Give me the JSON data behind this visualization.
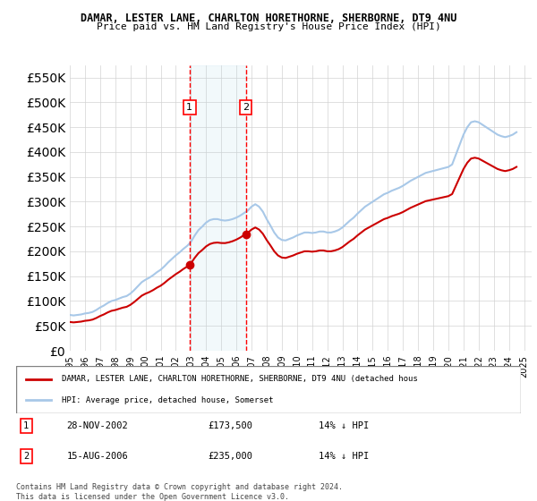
{
  "title1": "DAMAR, LESTER LANE, CHARLTON HORETHORNE, SHERBORNE, DT9 4NU",
  "title2": "Price paid vs. HM Land Registry's House Price Index (HPI)",
  "ylabel_ticks": [
    "£0",
    "£50K",
    "£100K",
    "£150K",
    "£200K",
    "£250K",
    "£300K",
    "£350K",
    "£400K",
    "£450K",
    "£500K",
    "£550K"
  ],
  "ytick_values": [
    0,
    50000,
    100000,
    150000,
    200000,
    250000,
    300000,
    350000,
    400000,
    450000,
    500000,
    550000
  ],
  "ylim": [
    0,
    575000
  ],
  "xlim_start": 1995.0,
  "xlim_end": 2025.5,
  "hpi_color": "#a8c8e8",
  "price_color": "#cc0000",
  "marker1_date": 2002.91,
  "marker1_price": 173500,
  "marker2_date": 2006.62,
  "marker2_price": 235000,
  "marker1_label": "28-NOV-2002",
  "marker1_amount": "£173,500",
  "marker1_pct": "14% ↓ HPI",
  "marker2_label": "15-AUG-2006",
  "marker2_amount": "£235,000",
  "marker2_pct": "14% ↓ HPI",
  "legend_line1": "DAMAR, LESTER LANE, CHARLTON HORETHORNE, SHERBORNE, DT9 4NU (detached hous",
  "legend_line2": "HPI: Average price, detached house, Somerset",
  "footer": "Contains HM Land Registry data © Crown copyright and database right 2024.\nThis data is licensed under the Open Government Licence v3.0.",
  "hpi_years": [
    1995.0,
    1995.25,
    1995.5,
    1995.75,
    1996.0,
    1996.25,
    1996.5,
    1996.75,
    1997.0,
    1997.25,
    1997.5,
    1997.75,
    1998.0,
    1998.25,
    1998.5,
    1998.75,
    1999.0,
    1999.25,
    1999.5,
    1999.75,
    2000.0,
    2000.25,
    2000.5,
    2000.75,
    2001.0,
    2001.25,
    2001.5,
    2001.75,
    2002.0,
    2002.25,
    2002.5,
    2002.75,
    2003.0,
    2003.25,
    2003.5,
    2003.75,
    2004.0,
    2004.25,
    2004.5,
    2004.75,
    2005.0,
    2005.25,
    2005.5,
    2005.75,
    2006.0,
    2006.25,
    2006.5,
    2006.75,
    2007.0,
    2007.25,
    2007.5,
    2007.75,
    2008.0,
    2008.25,
    2008.5,
    2008.75,
    2009.0,
    2009.25,
    2009.5,
    2009.75,
    2010.0,
    2010.25,
    2010.5,
    2010.75,
    2011.0,
    2011.25,
    2011.5,
    2011.75,
    2012.0,
    2012.25,
    2012.5,
    2012.75,
    2013.0,
    2013.25,
    2013.5,
    2013.75,
    2014.0,
    2014.25,
    2014.5,
    2014.75,
    2015.0,
    2015.25,
    2015.5,
    2015.75,
    2016.0,
    2016.25,
    2016.5,
    2016.75,
    2017.0,
    2017.25,
    2017.5,
    2017.75,
    2018.0,
    2018.25,
    2018.5,
    2018.75,
    2019.0,
    2019.25,
    2019.5,
    2019.75,
    2020.0,
    2020.25,
    2020.5,
    2020.75,
    2021.0,
    2021.25,
    2021.5,
    2021.75,
    2022.0,
    2022.25,
    2022.5,
    2022.75,
    2023.0,
    2023.25,
    2023.5,
    2023.75,
    2024.0,
    2024.25,
    2024.5
  ],
  "hpi_values": [
    72000,
    71000,
    72000,
    73000,
    75000,
    76000,
    78000,
    82000,
    87000,
    91000,
    96000,
    100000,
    102000,
    105000,
    108000,
    110000,
    115000,
    122000,
    130000,
    138000,
    143000,
    147000,
    152000,
    158000,
    163000,
    170000,
    178000,
    185000,
    192000,
    198000,
    205000,
    211000,
    219000,
    232000,
    243000,
    250000,
    258000,
    263000,
    265000,
    265000,
    263000,
    262000,
    263000,
    265000,
    268000,
    272000,
    277000,
    282000,
    290000,
    295000,
    290000,
    280000,
    265000,
    252000,
    238000,
    228000,
    223000,
    222000,
    225000,
    228000,
    232000,
    235000,
    238000,
    238000,
    237000,
    238000,
    240000,
    240000,
    238000,
    238000,
    240000,
    243000,
    248000,
    255000,
    262000,
    268000,
    276000,
    283000,
    290000,
    295000,
    300000,
    305000,
    310000,
    315000,
    318000,
    322000,
    325000,
    328000,
    332000,
    337000,
    342000,
    346000,
    350000,
    354000,
    358000,
    360000,
    362000,
    364000,
    366000,
    368000,
    370000,
    375000,
    395000,
    415000,
    435000,
    450000,
    460000,
    462000,
    460000,
    455000,
    450000,
    445000,
    440000,
    435000,
    432000,
    430000,
    432000,
    435000,
    440000
  ],
  "sale_years": [
    2002.91,
    2006.62
  ],
  "sale_prices": [
    173500,
    235000
  ]
}
